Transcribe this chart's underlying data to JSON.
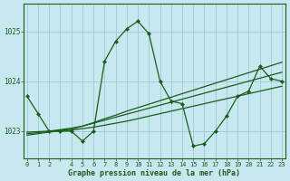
{
  "title": "Graphe pression niveau de la mer (hPa)",
  "bg_color": "#c8e8f0",
  "plot_bg_color": "#c8e8f0",
  "line_color": "#1a5c1a",
  "grid_color": "#a0c8d8",
  "x_values": [
    0,
    1,
    2,
    3,
    4,
    5,
    6,
    7,
    8,
    9,
    10,
    11,
    12,
    13,
    14,
    15,
    16,
    17,
    18,
    19,
    20,
    21,
    22,
    23
  ],
  "y_main": [
    1023.7,
    1023.35,
    1023.0,
    1023.0,
    1023.0,
    1022.8,
    1023.0,
    1024.4,
    1024.8,
    1025.05,
    1025.2,
    1024.95,
    1024.0,
    1023.6,
    1023.55,
    1022.7,
    1022.75,
    1023.0,
    1023.3,
    1023.7,
    1023.8,
    1024.3,
    1024.05,
    1024.0
  ],
  "y_smooth1": [
    1022.98,
    1022.99,
    1023.0,
    1023.01,
    1023.02,
    1023.05,
    1023.08,
    1023.12,
    1023.16,
    1023.2,
    1023.25,
    1023.3,
    1023.35,
    1023.4,
    1023.45,
    1023.5,
    1023.55,
    1023.6,
    1023.65,
    1023.7,
    1023.75,
    1023.8,
    1023.85,
    1023.9
  ],
  "y_smooth2": [
    1022.92,
    1022.95,
    1022.98,
    1023.01,
    1023.04,
    1023.1,
    1023.17,
    1023.25,
    1023.32,
    1023.4,
    1023.47,
    1023.54,
    1023.61,
    1023.68,
    1023.75,
    1023.82,
    1023.89,
    1023.96,
    1024.03,
    1024.1,
    1024.17,
    1024.24,
    1024.31,
    1024.38
  ],
  "y_smooth3": [
    1022.95,
    1022.97,
    1023.0,
    1023.03,
    1023.06,
    1023.1,
    1023.16,
    1023.22,
    1023.28,
    1023.34,
    1023.4,
    1023.46,
    1023.52,
    1023.58,
    1023.64,
    1023.7,
    1023.76,
    1023.82,
    1023.88,
    1023.94,
    1024.0,
    1024.06,
    1024.12,
    1024.18
  ],
  "ylim": [
    1022.45,
    1025.55
  ],
  "yticks": [
    1023,
    1024,
    1025
  ],
  "xlim": [
    -0.3,
    23.3
  ],
  "xtick_labels": [
    "0",
    "1",
    "2",
    "",
    "4",
    "5",
    "6",
    "7",
    "8",
    "9",
    "10",
    "11",
    "12",
    "13",
    "14",
    "15",
    "16",
    "17",
    "18",
    "19",
    "20",
    "21",
    "22",
    "23"
  ],
  "xtick_positions": [
    0,
    1,
    2,
    3,
    4,
    5,
    6,
    7,
    8,
    9,
    10,
    11,
    12,
    13,
    14,
    15,
    16,
    17,
    18,
    19,
    20,
    21,
    22,
    23
  ]
}
